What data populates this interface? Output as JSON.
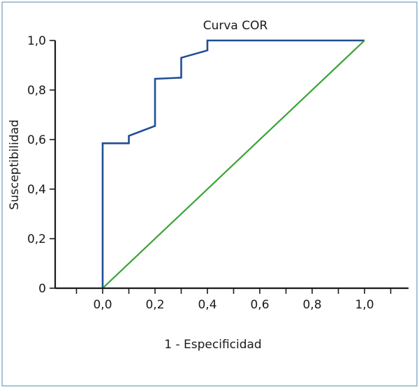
{
  "chart_data": {
    "type": "line",
    "title": "Curva COR",
    "xlabel": "1 - Especificidad",
    "ylabel": "Susceptibilidad",
    "xlim": [
      0,
      1
    ],
    "ylim": [
      0,
      1
    ],
    "x_ticks": [
      "0,0",
      "0,2",
      "0,4",
      "0,6",
      "0,8",
      "1,0"
    ],
    "y_ticks": [
      "0",
      "0,2",
      "0,4",
      "0,6",
      "0,8",
      "1,0"
    ],
    "grid": false,
    "series": [
      {
        "color": "#1f4e96",
        "step": true,
        "x": [
          0.0,
          0.0,
          0.1,
          0.1,
          0.2,
          0.2,
          0.3,
          0.3,
          0.4,
          0.4,
          1.0
        ],
        "y": [
          0.0,
          0.585,
          0.585,
          0.615,
          0.655,
          0.845,
          0.85,
          0.93,
          0.96,
          1.0,
          1.0
        ]
      },
      {
        "color": "#3aa335",
        "step": false,
        "x": [
          0.0,
          1.0
        ],
        "y": [
          0.0,
          1.0
        ]
      }
    ]
  }
}
